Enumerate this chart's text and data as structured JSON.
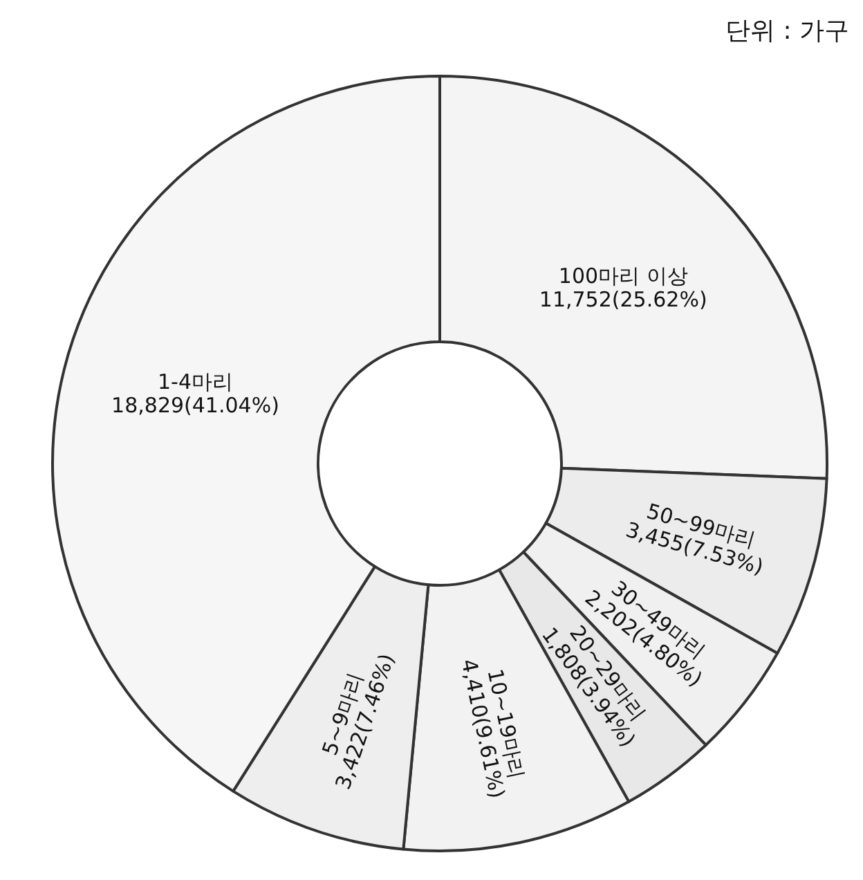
{
  "chart_data": {
    "type": "donut",
    "annotations": [
      "단위 : 가구"
    ],
    "categories": [
      "100마리 이상",
      "50~99마리",
      "30~49마리",
      "20~29마리",
      "10~19마리",
      "5~9마리",
      "1-4마리"
    ],
    "values": [
      11752,
      3455,
      2202,
      1808,
      4410,
      3422,
      18829
    ],
    "value_labels": [
      "11,752(25.62%)",
      "3,455(7.53%)",
      "2,202(4.80%)",
      "1,808(3.94%)",
      "4,410(9.61%)",
      "3,422(7.46%)",
      "18,829(41.04%)"
    ],
    "colors": [
      "#f4f4f4",
      "#ececec",
      "#f0f0f0",
      "#e8e8e8",
      "#f2f2f2",
      "#eeeeee",
      "#f6f6f6"
    ]
  }
}
